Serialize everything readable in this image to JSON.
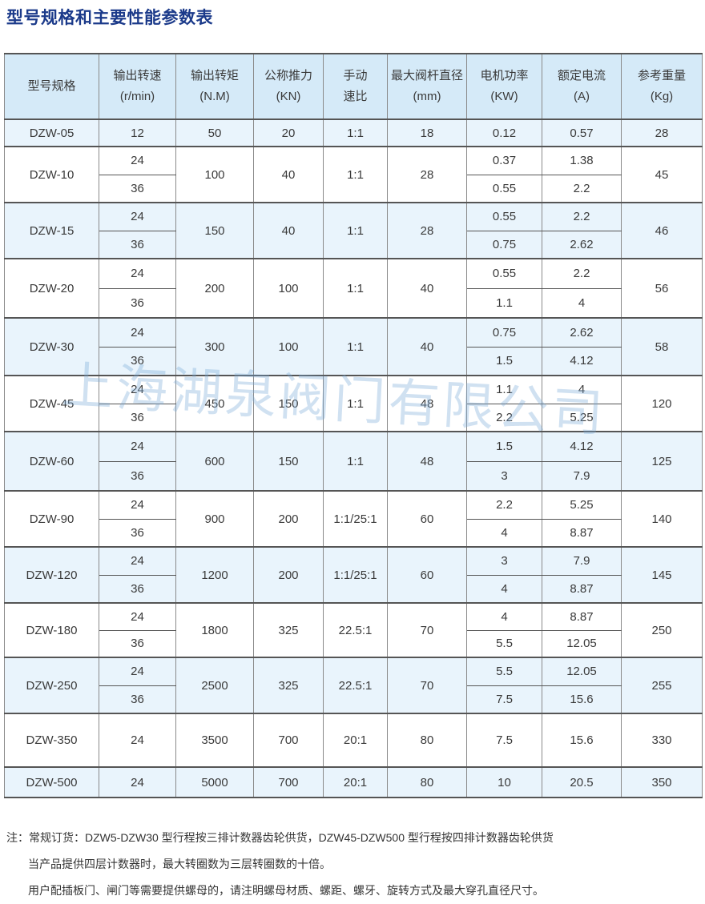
{
  "title": "型号规格和主要性能参数表",
  "watermark": "上海湖泉阀门有限公司",
  "colors": {
    "title": "#1b3a8a",
    "header_bg": "#d5eaf8",
    "alt_row_bg": "#e9f4fc"
  },
  "headers": [
    [
      "型号规格"
    ],
    [
      "输出转速",
      "(r/min)"
    ],
    [
      "输出转矩",
      "(N.M)"
    ],
    [
      "公称推力",
      "(KN)"
    ],
    [
      "手动",
      "速比"
    ],
    [
      "最大阀杆直径",
      "(mm)"
    ],
    [
      "电机功率",
      "(KW)"
    ],
    [
      "额定电流",
      "(A)"
    ],
    [
      "参考重量",
      "(Kg)"
    ]
  ],
  "rows": [
    {
      "model": "DZW-05",
      "speeds": [
        "12"
      ],
      "torque": "50",
      "thrust": "20",
      "ratio": "1:1",
      "stem": "18",
      "power": [
        "0.12"
      ],
      "current": [
        "0.57"
      ],
      "weight": "28"
    },
    {
      "model": "DZW-10",
      "speeds": [
        "24",
        "36"
      ],
      "torque": "100",
      "thrust": "40",
      "ratio": "1:1",
      "stem": "28",
      "power": [
        "0.37",
        "0.55"
      ],
      "current": [
        "1.38",
        "2.2"
      ],
      "weight": "45"
    },
    {
      "model": "DZW-15",
      "speeds": [
        "24",
        "36"
      ],
      "torque": "150",
      "thrust": "40",
      "ratio": "1:1",
      "stem": "28",
      "power": [
        "0.55",
        "0.75"
      ],
      "current": [
        "2.2",
        "2.62"
      ],
      "weight": "46"
    },
    {
      "model": "DZW-20",
      "speeds": [
        "24",
        "36"
      ],
      "torque": "200",
      "thrust": "100",
      "ratio": "1:1",
      "stem": "40",
      "power": [
        "0.55",
        "1.1"
      ],
      "current": [
        "2.2",
        "4"
      ],
      "weight": "56"
    },
    {
      "model": "DZW-30",
      "speeds": [
        "24",
        "36"
      ],
      "torque": "300",
      "thrust": "100",
      "ratio": "1:1",
      "stem": "40",
      "power": [
        "0.75",
        "1.5"
      ],
      "current": [
        "2.62",
        "4.12"
      ],
      "weight": "58"
    },
    {
      "model": "DZW-45",
      "speeds": [
        "24",
        "36"
      ],
      "torque": "450",
      "thrust": "150",
      "ratio": "1:1",
      "stem": "48",
      "power": [
        "1.1",
        "2.2"
      ],
      "current": [
        "4",
        "5.25"
      ],
      "weight": "120"
    },
    {
      "model": "DZW-60",
      "speeds": [
        "24",
        "36"
      ],
      "torque": "600",
      "thrust": "150",
      "ratio": "1:1",
      "stem": "48",
      "power": [
        "1.5",
        "3"
      ],
      "current": [
        "4.12",
        "7.9"
      ],
      "weight": "125"
    },
    {
      "model": "DZW-90",
      "speeds": [
        "24",
        "36"
      ],
      "torque": "900",
      "thrust": "200",
      "ratio": "1:1/25:1",
      "stem": "60",
      "power": [
        "2.2",
        "4"
      ],
      "current": [
        "5.25",
        "8.87"
      ],
      "weight": "140"
    },
    {
      "model": "DZW-120",
      "speeds": [
        "24",
        "36"
      ],
      "torque": "1200",
      "thrust": "200",
      "ratio": "1:1/25:1",
      "stem": "60",
      "power": [
        "3",
        "4"
      ],
      "current": [
        "7.9",
        "8.87"
      ],
      "weight": "145"
    },
    {
      "model": "DZW-180",
      "speeds": [
        "24",
        "36"
      ],
      "torque": "1800",
      "thrust": "325",
      "ratio": "22.5:1",
      "stem": "70",
      "power": [
        "4",
        "5.5"
      ],
      "current": [
        "8.87",
        "12.05"
      ],
      "weight": "250"
    },
    {
      "model": "DZW-250",
      "speeds": [
        "24",
        "36"
      ],
      "torque": "2500",
      "thrust": "325",
      "ratio": "22.5:1",
      "stem": "70",
      "power": [
        "5.5",
        "7.5"
      ],
      "current": [
        "12.05",
        "15.6"
      ],
      "weight": "255"
    },
    {
      "model": "DZW-350",
      "speeds": [
        "24"
      ],
      "torque": "3500",
      "thrust": "700",
      "ratio": "20:1",
      "stem": "80",
      "power": [
        "7.5"
      ],
      "current": [
        "15.6"
      ],
      "weight": "330"
    },
    {
      "model": "DZW-500",
      "speeds": [
        "24"
      ],
      "torque": "5000",
      "thrust": "700",
      "ratio": "20:1",
      "stem": "80",
      "power": [
        "10"
      ],
      "current": [
        "20.5"
      ],
      "weight": "350"
    }
  ],
  "notes": [
    "注：常规订货：DZW5-DZW30 型行程按三排计数器齿轮供货，DZW45-DZW500 型行程按四排计数器齿轮供货",
    "当产品提供四层计数器时，最大转圈数为三层转圈数的十倍。",
    "用户配插板门、闸门等需要提供螺母的，请注明螺母材质、螺距、螺牙、旋转方式及最大穿孔直径尺寸。"
  ]
}
